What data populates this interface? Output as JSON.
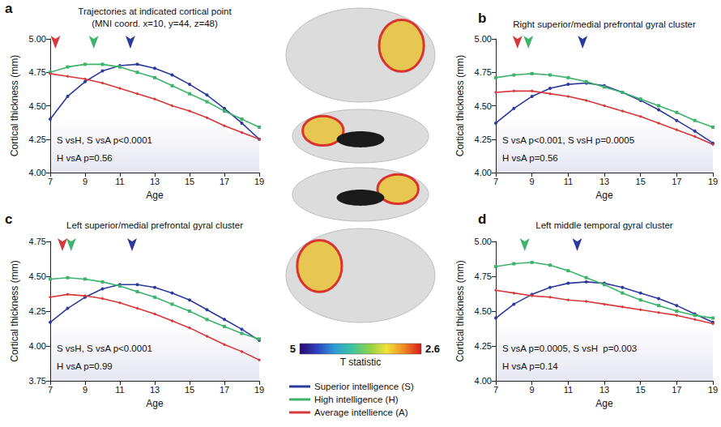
{
  "chart_data": [
    {
      "panel": "a",
      "type": "line",
      "title": "Trajectories at indicated cortical point\n(MNI coord. x=10, y=44, z=48)",
      "x_label": "Age",
      "y_label": "Cortical thickness (mm)",
      "annotations": [
        "S vsH, S vsA p<0.0001",
        "H vsA p=0.56"
      ],
      "x": [
        7,
        8,
        9,
        10,
        11,
        12,
        13,
        14,
        15,
        16,
        17,
        18,
        19
      ],
      "xlim": [
        7,
        19
      ],
      "xticks": [
        7,
        9,
        11,
        13,
        15,
        17,
        19
      ],
      "ylim": [
        4,
        5
      ],
      "yticks": [
        {
          "value": 4,
          "label": "4.00"
        },
        {
          "value": 4.25,
          "label": "4.25"
        },
        {
          "value": 4.5,
          "label": "4.50"
        },
        {
          "value": 4.75,
          "label": "4.75"
        },
        {
          "value": 5,
          "label": "5.00"
        }
      ],
      "legend": "bottom",
      "series": [
        {
          "name": "Superior intelligence (S)",
          "color": "#2b3a9c",
          "marker": "circle",
          "peak_age": 11.6,
          "values": [
            4.4,
            4.57,
            4.68,
            4.76,
            4.8,
            4.81,
            4.78,
            4.73,
            4.66,
            4.58,
            4.48,
            4.37,
            4.25
          ]
        },
        {
          "name": "High intelligence (H)",
          "color": "#3db36b",
          "marker": "rect",
          "peak_age": 9.5,
          "values": [
            4.75,
            4.79,
            4.81,
            4.81,
            4.79,
            4.75,
            4.71,
            4.65,
            4.59,
            4.53,
            4.46,
            4.4,
            4.34
          ]
        },
        {
          "name": "Average intellience (A)",
          "color": "#d8373a",
          "marker": "diamond",
          "peak_age": 7.3,
          "values": [
            4.74,
            4.72,
            4.7,
            4.67,
            4.63,
            4.59,
            4.55,
            4.5,
            4.46,
            4.41,
            4.35,
            4.3,
            4.25
          ]
        }
      ]
    },
    {
      "panel": "b",
      "type": "line",
      "title": "Right superior/medial prefrontal gyral cluster",
      "x_label": "Age",
      "y_label": "Cortical thickness (mm)",
      "annotations": [
        "S vsA p<0.001, S vsH p=0.0005",
        "H vsA p=0.56"
      ],
      "x": [
        7,
        8,
        9,
        10,
        11,
        12,
        13,
        14,
        15,
        16,
        17,
        18,
        19
      ],
      "xlim": [
        7,
        19
      ],
      "xticks": [
        7,
        9,
        11,
        13,
        15,
        17,
        19
      ],
      "ylim": [
        4,
        5
      ],
      "yticks": [
        {
          "value": 4,
          "label": "4.00"
        },
        {
          "value": 4.25,
          "label": "4.25"
        },
        {
          "value": 4.5,
          "label": "4.50"
        },
        {
          "value": 4.75,
          "label": "4.75"
        },
        {
          "value": 5,
          "label": "5.00"
        }
      ],
      "series": [
        {
          "name": "Superior intelligence (S)",
          "color": "#2b3a9c",
          "marker": "circle",
          "peak_age": 11.8,
          "values": [
            4.37,
            4.48,
            4.57,
            4.63,
            4.66,
            4.67,
            4.65,
            4.6,
            4.54,
            4.47,
            4.39,
            4.31,
            4.22
          ]
        },
        {
          "name": "High intelligence (H)",
          "color": "#3db36b",
          "marker": "rect",
          "peak_age": 8.8,
          "values": [
            4.71,
            4.73,
            4.74,
            4.73,
            4.71,
            4.68,
            4.64,
            4.6,
            4.55,
            4.5,
            4.45,
            4.39,
            4.34
          ]
        },
        {
          "name": "Average intellience (A)",
          "color": "#d8373a",
          "marker": "diamond",
          "peak_age": 8.2,
          "values": [
            4.6,
            4.61,
            4.61,
            4.59,
            4.57,
            4.54,
            4.5,
            4.46,
            4.42,
            4.37,
            4.32,
            4.27,
            4.21
          ]
        }
      ]
    },
    {
      "panel": "c",
      "type": "line",
      "title": "Left superior/medial prefrontal gyral cluster",
      "x_label": "Age",
      "y_label": "Cortical thickness (mm)",
      "annotations": [
        "S vsH, S vsA p<0.0001",
        "H vsA p=0.99"
      ],
      "x": [
        7,
        8,
        9,
        10,
        11,
        12,
        13,
        14,
        15,
        16,
        17,
        18,
        19
      ],
      "xlim": [
        7,
        19
      ],
      "xticks": [
        7,
        9,
        11,
        13,
        15,
        17,
        19
      ],
      "ylim": [
        3.75,
        4.75
      ],
      "yticks": [
        {
          "value": 3.75,
          "label": "3.75"
        },
        {
          "value": 4,
          "label": "4.00"
        },
        {
          "value": 4.25,
          "label": "4.25"
        },
        {
          "value": 4.5,
          "label": "4.50"
        },
        {
          "value": 4.75,
          "label": "4.75"
        }
      ],
      "series": [
        {
          "name": "Superior intelligence (S)",
          "color": "#2b3a9c",
          "marker": "circle",
          "peak_age": 11.7,
          "values": [
            4.17,
            4.27,
            4.35,
            4.41,
            4.44,
            4.44,
            4.42,
            4.38,
            4.33,
            4.26,
            4.19,
            4.12,
            4.04
          ]
        },
        {
          "name": "High intelligence (H)",
          "color": "#3db36b",
          "marker": "rect",
          "peak_age": 8.2,
          "values": [
            4.48,
            4.49,
            4.48,
            4.46,
            4.43,
            4.39,
            4.35,
            4.3,
            4.25,
            4.19,
            4.14,
            4.09,
            4.05
          ]
        },
        {
          "name": "Average intellience (A)",
          "color": "#d8373a",
          "marker": "diamond",
          "peak_age": 7.7,
          "values": [
            4.35,
            4.37,
            4.36,
            4.34,
            4.31,
            4.27,
            4.23,
            4.18,
            4.13,
            4.07,
            4.01,
            3.96,
            3.9
          ]
        }
      ]
    },
    {
      "panel": "d",
      "type": "line",
      "title": "Left middle temporal gyral cluster",
      "x_label": "Age",
      "y_label": "Cortical thickness (mm)",
      "annotations": [
        "S vsA p=0.0005, S vsH  p=0.003",
        "H vsA p=0.14"
      ],
      "x": [
        7,
        8,
        9,
        10,
        11,
        12,
        13,
        14,
        15,
        16,
        17,
        18,
        19
      ],
      "xlim": [
        7,
        19
      ],
      "xticks": [
        7,
        9,
        11,
        13,
        15,
        17,
        19
      ],
      "ylim": [
        4,
        5
      ],
      "yticks": [
        {
          "value": 4,
          "label": "4.00"
        },
        {
          "value": 4.25,
          "label": "4.25"
        },
        {
          "value": 4.5,
          "label": "4.50"
        },
        {
          "value": 4.75,
          "label": "4.75"
        },
        {
          "value": 5,
          "label": "5.00"
        }
      ],
      "series": [
        {
          "name": "Superior intelligence (S)",
          "color": "#2b3a9c",
          "marker": "circle",
          "peak_age": 11.5,
          "values": [
            4.45,
            4.55,
            4.62,
            4.67,
            4.7,
            4.71,
            4.7,
            4.67,
            4.63,
            4.59,
            4.54,
            4.48,
            4.42
          ]
        },
        {
          "name": "High intelligence (H)",
          "color": "#3db36b",
          "marker": "rect",
          "peak_age": 8.6,
          "values": [
            4.82,
            4.84,
            4.85,
            4.83,
            4.79,
            4.74,
            4.69,
            4.63,
            4.58,
            4.54,
            4.5,
            4.47,
            4.45
          ]
        },
        {
          "name": "Average intellience (A)",
          "color": "#d8373a",
          "marker": "diamond",
          "values": [
            4.65,
            4.63,
            4.61,
            4.6,
            4.58,
            4.57,
            4.55,
            4.53,
            4.51,
            4.49,
            4.47,
            4.44,
            4.41
          ]
        }
      ]
    }
  ],
  "colorbar": {
    "title": "T statistic",
    "range": [
      5,
      2.6
    ],
    "ticks": [
      5,
      2.6
    ],
    "colors": [
      "#2a0a6e",
      "#3040c0",
      "#2f9ad6",
      "#3cc4a0",
      "#8ed14a",
      "#f3e23a",
      "#f08a24",
      "#d7191c"
    ]
  }
}
